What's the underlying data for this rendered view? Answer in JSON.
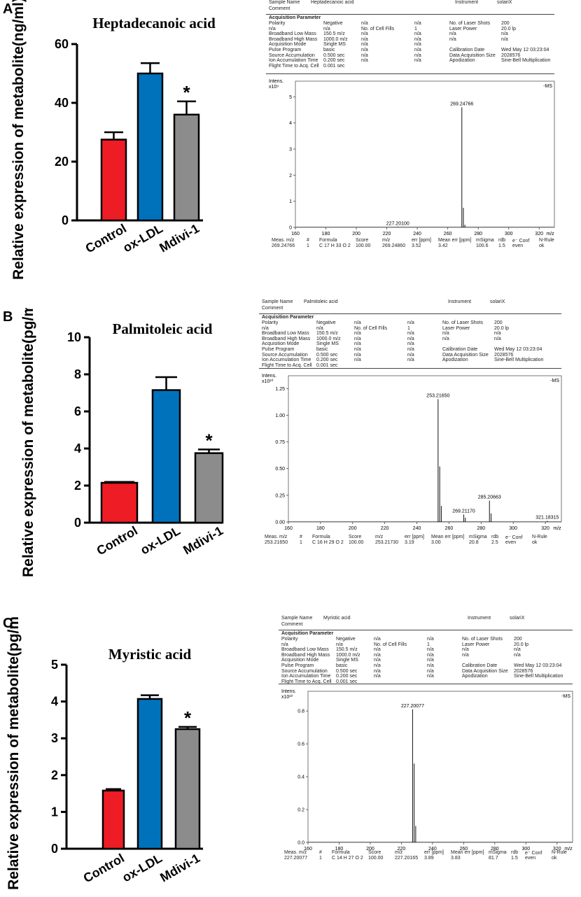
{
  "panels": [
    {
      "letter": "A",
      "bar_ticks": [
        "0",
        "20",
        "40",
        "60"
      ],
      "spec_ticks": [
        "0",
        "1",
        "2",
        "3",
        "4",
        "5"
      ],
      "spec_x_ticks": [
        "160",
        "180",
        "200",
        "220",
        "240",
        "260",
        "280",
        "300",
        "320",
        "m/z"
      ],
      "header": {
        "sample_label": "Sample Name",
        "sample": "Heptadecanoic acid",
        "instrument_label": "Instrument",
        "instrument": "solariX",
        "comment_label": "Comment",
        "acq_title": "Acquisition Parameter",
        "rows": [
          [
            "Polarity",
            "Negative",
            "n/a",
            "n/a",
            "No. of Laser Shots",
            "200"
          ],
          [
            "n/a",
            "n/a",
            "No. of Cell Fills",
            "1",
            "Laser Power",
            "20.0 lp"
          ],
          [
            "Broadband Low Mass",
            "150.5 m/z",
            "n/a",
            "n/a",
            "n/a",
            "n/a"
          ],
          [
            "Broadband High Mass",
            "1000.0 m/z",
            "n/a",
            "n/a",
            "n/a",
            "n/a"
          ],
          [
            "Acquisition Mode",
            "Single MS",
            "n/a",
            "n/a",
            "",
            ""
          ],
          [
            "Pulse Program",
            "basic",
            "n/a",
            "n/a",
            "Calibration Date",
            "Wed May 12 03:23:04"
          ],
          [
            "Source Accumulation",
            "0.500 sec",
            "n/a",
            "n/a",
            "Data Acquisition Size",
            "2028576"
          ],
          [
            "Ion Accumulation Time",
            "0.200 sec",
            "n/a",
            "n/a",
            "Apodization",
            "Sine-Bell Multiplication"
          ],
          [
            "Flight Time to Acq. Cell",
            "0.001 sec",
            "",
            "",
            "",
            ""
          ]
        ],
        "intens_label": "Intens.",
        "scale_label": "x10⁹",
        "ms_label": "-MS"
      },
      "footer": {
        "headers": [
          "Meas. m/z",
          "#",
          "Formula",
          "Score",
          "m/z",
          "err [ppm]",
          "Mean err [ppm]",
          "mSigma",
          "rdb",
          "e⁻ Conf",
          "N-Rule"
        ],
        "values": [
          "269.24766",
          "1",
          "C 17 H 33 O 2",
          "100.00",
          "269.24860",
          "3.52",
          "3.42",
          "100.6",
          "1.5",
          "even",
          "ok"
        ]
      }
    },
    {
      "letter": "B",
      "bar_ticks": [
        "0",
        "2",
        "4",
        "6",
        "8",
        "10"
      ],
      "spec_ticks": [
        "0.00",
        "0.25",
        "0.50",
        "0.75",
        "1.00",
        "1.25"
      ],
      "spec_x_ticks": [
        "160",
        "180",
        "200",
        "220",
        "240",
        "260",
        "280",
        "300",
        "320",
        "m/z"
      ],
      "header": {
        "sample_label": "Sample Name",
        "sample": "Palmitoleic acid",
        "instrument_label": "Instrument",
        "instrument": "solariX",
        "comment_label": "Comment",
        "acq_title": "Acquisition Parameter",
        "rows": [
          [
            "Polarity",
            "Negative",
            "n/a",
            "n/a",
            "No. of Laser Shots",
            "200"
          ],
          [
            "n/a",
            "n/a",
            "No. of Cell Fills",
            "1",
            "Laser Power",
            "20.0 lp"
          ],
          [
            "Broadband Low Mass",
            "150.5 m/z",
            "n/a",
            "n/a",
            "n/a",
            "n/a"
          ],
          [
            "Broadband High Mass",
            "1000.0 m/z",
            "n/a",
            "n/a",
            "n/a",
            "n/a"
          ],
          [
            "Acquisition Mode",
            "Single MS",
            "n/a",
            "n/a",
            "",
            ""
          ],
          [
            "Pulse Program",
            "basic",
            "n/a",
            "n/a",
            "Calibration Date",
            "Wed May 12 03:23:04"
          ],
          [
            "Source Accumulation",
            "0.500 sec",
            "n/a",
            "n/a",
            "Data Acquisition Size",
            "2028576"
          ],
          [
            "Ion Accumulation Time",
            "0.200 sec",
            "n/a",
            "n/a",
            "Apodization",
            "Sine-Bell Multiplication"
          ],
          [
            "Flight Time to Acq. Cell",
            "0.001 sec",
            "",
            "",
            "",
            ""
          ]
        ],
        "intens_label": "Intens.",
        "scale_label": "x10¹⁰",
        "ms_label": "-MS"
      },
      "footer": {
        "headers": [
          "Meas. m/z",
          "#",
          "Formula",
          "Score",
          "m/z",
          "err [ppm]",
          "Mean err [ppm]",
          "mSigma",
          "rdb",
          "e⁻ Conf",
          "N-Rule"
        ],
        "values": [
          "253.21650",
          "1",
          "C 16 H 29 O 2",
          "100.00",
          "253.21730",
          "3.19",
          "3.00",
          "20.8",
          "2.5",
          "even",
          "ok"
        ]
      }
    },
    {
      "letter": "C",
      "bar_ticks": [
        "0",
        "1",
        "2",
        "3",
        "4",
        "5"
      ],
      "spec_ticks": [
        "0.0",
        "0.2",
        "0.4",
        "0.6",
        "0.8"
      ],
      "spec_x_ticks": [
        "160",
        "180",
        "200",
        "220",
        "240",
        "260",
        "280",
        "300",
        "320",
        "m/z"
      ],
      "header": {
        "sample_label": "Sample Name",
        "sample": "Myristic acid",
        "instrument_label": "Instrument",
        "instrument": "solariX",
        "comment_label": "Comment",
        "acq_title": "Acquisition Parameter",
        "rows": [
          [
            "Polarity",
            "Negative",
            "n/a",
            "n/a",
            "No. of Laser Shots",
            "200"
          ],
          [
            "n/a",
            "n/a",
            "No. of Cell Fills",
            "1",
            "Laser Power",
            "20.0 lp"
          ],
          [
            "Broadband Low Mass",
            "150.5 m/z",
            "n/a",
            "n/a",
            "n/a",
            "n/a"
          ],
          [
            "Broadband High Mass",
            "1000.0 m/z",
            "n/a",
            "n/a",
            "n/a",
            "n/a"
          ],
          [
            "Acquisition Mode",
            "Single MS",
            "n/a",
            "n/a",
            "",
            ""
          ],
          [
            "Pulse Program",
            "basic",
            "n/a",
            "n/a",
            "Calibration Date",
            "Wed May 12 03:23:04"
          ],
          [
            "Source Accumulation",
            "0.500 sec",
            "n/a",
            "n/a",
            "Data Acquisition Size",
            "2028576"
          ],
          [
            "Ion Accumulation Time",
            "0.200 sec",
            "n/a",
            "n/a",
            "Apodization",
            "Sine-Bell Multiplication"
          ],
          [
            "Flight Time to Acq. Cell",
            "0.001 sec",
            "",
            "",
            "",
            ""
          ]
        ],
        "intens_label": "Intens.",
        "scale_label": "x10¹⁰",
        "ms_label": "-MS"
      },
      "footer": {
        "headers": [
          "Meas. m/z",
          "#",
          "Formula",
          "Score",
          "m/z",
          "err [ppm]",
          "Mean err [ppm]",
          "mSigma",
          "rdb",
          "e⁻ Conf",
          "N-Rule"
        ],
        "values": [
          "227.20077",
          "1",
          "C 14 H 27 O 2",
          "100.00",
          "227.20165",
          "3.89",
          "3.83",
          "81.7",
          "1.5",
          "even",
          "ok"
        ]
      }
    }
  ],
  "colors": {
    "control": "#ee1c24",
    "ox_ldl": "#0072bc",
    "mdivi": "#8c8c8c"
  },
  "chart_data": [
    {
      "type": "bar",
      "title": "Heptadecanoic acid",
      "ylabel": "Relative expression of metabolite(ng/ml)",
      "categories": [
        "Control",
        "ox-LDL",
        "Mdivi-1"
      ],
      "values": [
        27.5,
        50.0,
        36.0
      ],
      "errors": [
        2.5,
        3.5,
        4.5
      ],
      "significance": [
        "",
        "",
        "*"
      ],
      "ylim": [
        0,
        60
      ]
    },
    {
      "type": "line",
      "title": "Heptadecanoic acid mass spectrum (-MS)",
      "xlim": [
        160,
        330
      ],
      "ylim": [
        0,
        5.6
      ],
      "peaks": [
        {
          "mz": 227.201,
          "intensity": 0.02,
          "label": "227.20100"
        },
        {
          "mz": 269.24766,
          "intensity": 4.6,
          "label": "269.24766"
        },
        {
          "mz": 270.25,
          "intensity": 0.75,
          "label": ""
        },
        {
          "mz": 271.26,
          "intensity": 0.1,
          "label": ""
        }
      ]
    },
    {
      "type": "bar",
      "title": "Palmitoleic acid",
      "ylabel": "Relative expression of metabolite(pg/ml)",
      "categories": [
        "Control",
        "ox-LDL",
        "Mdivi-1"
      ],
      "values": [
        2.15,
        7.15,
        3.75
      ],
      "errors": [
        0.05,
        0.7,
        0.2
      ],
      "significance": [
        "",
        "",
        "*"
      ],
      "ylim": [
        0,
        10
      ]
    },
    {
      "type": "line",
      "title": "Palmitoleic acid mass spectrum (-MS)",
      "xlim": [
        160,
        330
      ],
      "ylim": [
        0,
        1.37
      ],
      "peaks": [
        {
          "mz": 253.2165,
          "intensity": 1.15,
          "label": "253.21650"
        },
        {
          "mz": 254.22,
          "intensity": 0.52,
          "label": ""
        },
        {
          "mz": 255.22,
          "intensity": 0.15,
          "label": ""
        },
        {
          "mz": 269.2117,
          "intensity": 0.07,
          "label": "269.21170"
        },
        {
          "mz": 270.2,
          "intensity": 0.04,
          "label": ""
        },
        {
          "mz": 285.20663,
          "intensity": 0.2,
          "label": "285.20663"
        },
        {
          "mz": 286.21,
          "intensity": 0.08,
          "label": ""
        },
        {
          "mz": 321.18315,
          "intensity": 0.01,
          "label": "321.18315"
        }
      ]
    },
    {
      "type": "bar",
      "title": "Myristic acid",
      "ylabel": "Relative expression of metabolite(pg/ml)",
      "categories": [
        "Control",
        "ox-LDL",
        "Mdivi-1"
      ],
      "values": [
        1.58,
        4.07,
        3.25
      ],
      "errors": [
        0.04,
        0.1,
        0.06
      ],
      "significance": [
        "",
        "",
        "*"
      ],
      "ylim": [
        0,
        5
      ]
    },
    {
      "type": "line",
      "title": "Myristic acid mass spectrum (-MS)",
      "xlim": [
        160,
        330
      ],
      "ylim": [
        0,
        0.92
      ],
      "peaks": [
        {
          "mz": 227.20077,
          "intensity": 0.81,
          "label": "227.20077"
        },
        {
          "mz": 228.2,
          "intensity": 0.48,
          "label": ""
        },
        {
          "mz": 229.2,
          "intensity": 0.1,
          "label": ""
        }
      ]
    }
  ]
}
